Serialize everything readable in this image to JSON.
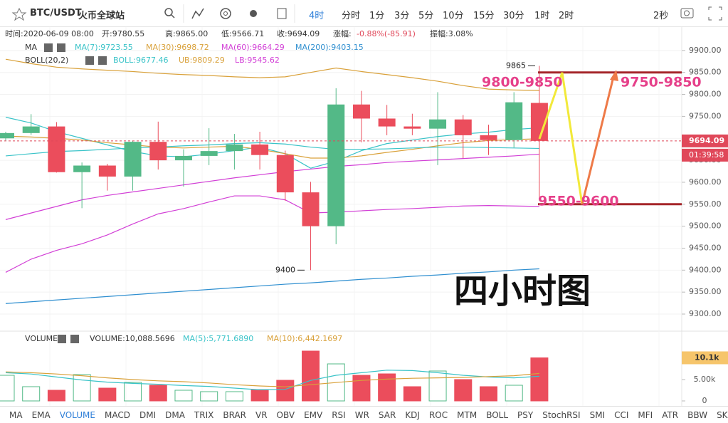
{
  "toolbar": {
    "symbol": "BTC/USDT",
    "exchange": "火币全球站",
    "intervals": [
      "4时",
      "分时",
      "1分",
      "3分",
      "5分",
      "10分",
      "15分",
      "30分",
      "1时",
      "2时"
    ],
    "refresh": "2秒"
  },
  "info": [
    "时间:2020-06-09 08:00",
    "开:9780.55",
    "高:9865.00",
    "低:9566.71",
    "收:9694.09",
    "涨幅:"
  ],
  "change": "-0.88%(-85.91)",
  "amplitude": "振幅:3.08%",
  "indicator_tabs": [
    "MA",
    "EMA",
    "VOLUME",
    "MACD",
    "DMI",
    "DMA",
    "TRIX",
    "BRAR",
    "VR",
    "OBV",
    "EMV",
    "RSI",
    "WR",
    "SAR",
    "KDJ",
    "ROC",
    "MTM",
    "BOLL",
    "PSY",
    "StochRSI",
    "SMI",
    "CCI",
    "MFI",
    "ATR",
    "BBW",
    "SKDJ"
  ],
  "chart_data": [
    {
      "type": "candlestick",
      "indicator_groups": [
        "MA",
        "BOLL(20,2)"
      ],
      "up_color": "#53b987",
      "down_color": "#eb4d5c",
      "open": [
        9700,
        9712,
        9727,
        9623,
        9638,
        9613,
        9692,
        9650,
        9660,
        9671,
        9686,
        9662,
        9577,
        9500,
        9777,
        9745,
        9727,
        9722,
        9743,
        9707,
        9696,
        9780.55
      ],
      "high": [
        9715,
        9755,
        9737,
        9645,
        9642,
        9695,
        9738,
        9675,
        9723,
        9710,
        9715,
        9672,
        9601,
        9814,
        9808,
        9776,
        9756,
        9805,
        9753,
        9731,
        9805,
        9865
      ],
      "low": [
        9695,
        9708,
        9622,
        9541,
        9581,
        9581,
        9629,
        9590,
        9639,
        9629,
        9629,
        9558,
        9400,
        9459,
        9691,
        9707,
        9707,
        9639,
        9655,
        9662,
        9679,
        9566.71
      ],
      "close": [
        9712,
        9727,
        9623,
        9638,
        9613,
        9692,
        9650,
        9660,
        9671,
        9686,
        9662,
        9577,
        9500,
        9777,
        9745,
        9727,
        9722,
        9743,
        9707,
        9696,
        9782,
        9694.09
      ],
      "series": [
        {
          "name": "MA(7):9723.55",
          "color": "#39c3c8",
          "values": [
            9748,
            9735,
            9715,
            9700,
            9685,
            9670,
            9660,
            9658,
            9664,
            9672,
            9680,
            9665,
            9632,
            9648,
            9672,
            9688,
            9696,
            9704,
            9710,
            9714,
            9720,
            9724
          ]
        },
        {
          "name": "MA(30):9698.72",
          "color": "#d9a13a",
          "values": [
            9705,
            9703,
            9700,
            9696,
            9690,
            9685,
            9680,
            9678,
            9680,
            9682,
            9675,
            9665,
            9655,
            9655,
            9660,
            9668,
            9675,
            9683,
            9690,
            9695,
            9697,
            9699
          ]
        },
        {
          "name": "MA(60):9664.29",
          "color": "#d23fd6",
          "values": [
            9515,
            9530,
            9545,
            9560,
            9570,
            9578,
            9586,
            9594,
            9602,
            9610,
            9617,
            9624,
            9630,
            9636,
            9640,
            9645,
            9648,
            9651,
            9654,
            9657,
            9660,
            9664
          ]
        },
        {
          "name": "MA(200):9403.15",
          "color": "#2f8fd0",
          "values": [
            9324,
            9328,
            9332,
            9336,
            9340,
            9344,
            9348,
            9352,
            9356,
            9360,
            9364,
            9368,
            9371,
            9375,
            9379,
            9382,
            9386,
            9389,
            9393,
            9396,
            9400,
            9403
          ]
        },
        {
          "name": "BOLL:9677.46",
          "color": "#39c3c8",
          "values": [
            9660,
            9665,
            9670,
            9672,
            9675,
            9678,
            9680,
            9683,
            9685,
            9688,
            9690,
            9687,
            9680,
            9675,
            9675,
            9676,
            9678,
            9680,
            9680,
            9679,
            9678,
            9677
          ]
        },
        {
          "name": "UB:9809.29",
          "color": "#d9a13a",
          "values": [
            9880,
            9870,
            9862,
            9858,
            9855,
            9852,
            9848,
            9845,
            9843,
            9840,
            9838,
            9840,
            9850,
            9860,
            9852,
            9845,
            9838,
            9830,
            9820,
            9812,
            9810,
            9809
          ]
        },
        {
          "name": "LB:9545.62",
          "color": "#d23fd6",
          "values": [
            9395,
            9425,
            9445,
            9460,
            9480,
            9505,
            9528,
            9540,
            9555,
            9569,
            9569,
            9560,
            9530,
            9532,
            9535,
            9538,
            9540,
            9543,
            9546,
            9547,
            9546,
            9545
          ]
        }
      ],
      "ylim": [
        9266,
        9950
      ],
      "yticks": [
        {
          "value": 9300,
          "label": "9300.00"
        },
        {
          "value": 9350,
          "label": "9350.00"
        },
        {
          "value": 9400,
          "label": "9400.00"
        },
        {
          "value": 9450,
          "label": "9450.00"
        },
        {
          "value": 9500,
          "label": "9500.00"
        },
        {
          "value": 9550,
          "label": "9550.00"
        },
        {
          "value": 9600,
          "label": "9600.00"
        },
        {
          "value": 9650,
          "label": "9650.00"
        },
        {
          "value": 9700,
          "label": "9700.00"
        },
        {
          "value": 9750,
          "label": "9750.00"
        },
        {
          "value": 9800,
          "label": "9800.00"
        },
        {
          "value": 9850,
          "label": "9850.00"
        },
        {
          "value": 9900,
          "label": "9900.00"
        }
      ],
      "grid": true,
      "last_price": 9694.09,
      "countdown": "01:39:58",
      "high_marker": 9865,
      "low_marker": 9400,
      "levels": [
        9850,
        9550
      ],
      "annotations": [
        "9800-9850",
        "9750-9850",
        "9550-9600",
        "四小时图"
      ]
    },
    {
      "type": "bar",
      "indicator_group": "VOLUME",
      "volume_label": "VOLUME:10,088.5696",
      "values": [
        6000,
        3333,
        2500,
        6167,
        3000,
        4333,
        3667,
        2500,
        2167,
        2167,
        2667,
        4833,
        11667,
        8667,
        6000,
        6333,
        3333,
        7000,
        5000,
        3333,
        3667,
        10088.5696
      ],
      "series": [
        {
          "name": "MA(5):5,771.6890",
          "color": "#39c3c8",
          "values": [
            6600,
            6300,
            5600,
            4900,
            4400,
            4100,
            3900,
            3600,
            3400,
            3000,
            2600,
            2700,
            4800,
            6000,
            6600,
            7200,
            7100,
            6600,
            6000,
            5600,
            5400,
            5771.689
          ]
        },
        {
          "name": "MA(10):6,442.1697",
          "color": "#d9a13a",
          "values": [
            6800,
            6600,
            6300,
            5900,
            5400,
            5000,
            4700,
            4500,
            4200,
            3800,
            3500,
            3300,
            3800,
            4300,
            4800,
            5100,
            5300,
            5400,
            5500,
            5700,
            5900,
            6442.1697
          ]
        }
      ],
      "ylim": [
        0,
        15833
      ],
      "yticks": [
        0,
        {
          "value": 5000,
          "label": "5.00k"
        }
      ],
      "last_value": {
        "value": 10088.5696,
        "label": "10.1k"
      }
    }
  ]
}
